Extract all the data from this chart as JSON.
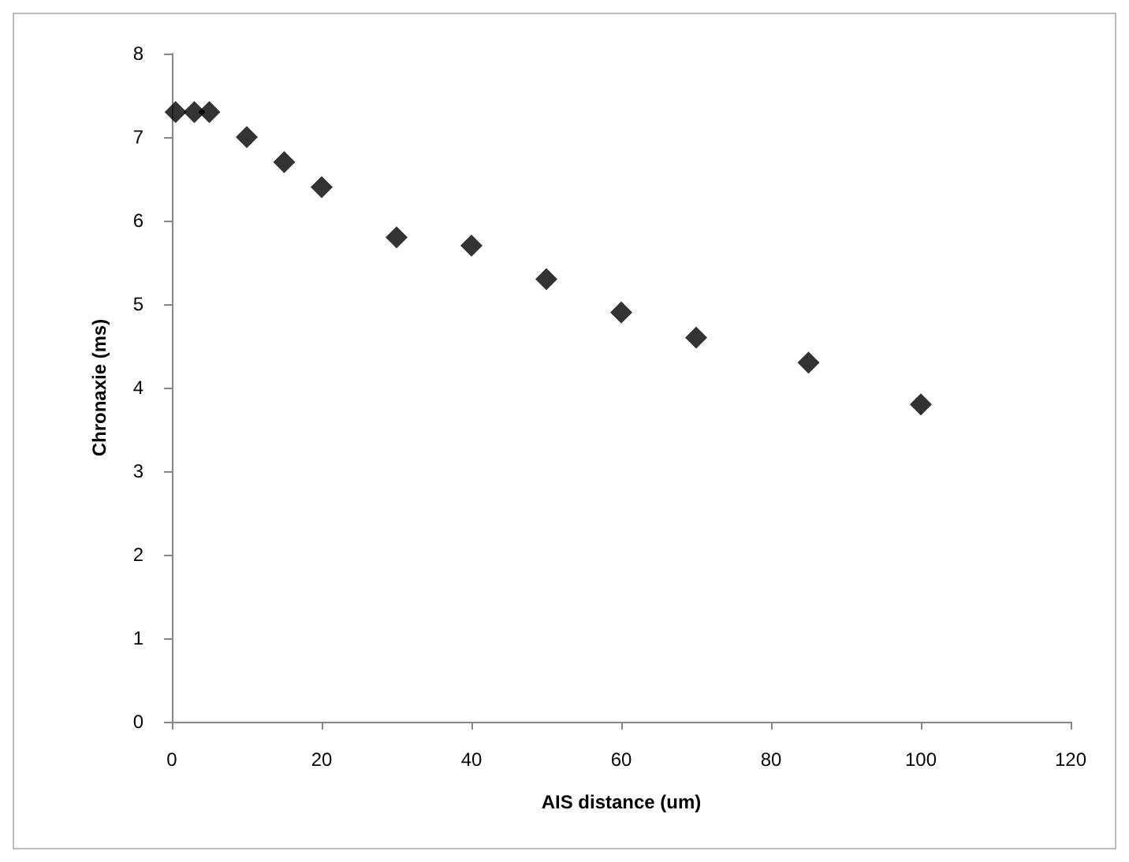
{
  "chart_data": {
    "type": "scatter",
    "xlabel": "AIS distance (um)",
    "ylabel": "Chronaxie (ms)",
    "x": [
      0.5,
      3,
      5,
      10,
      15,
      20,
      30,
      40,
      50,
      60,
      70,
      85,
      100
    ],
    "values": [
      7.3,
      7.3,
      7.3,
      7.0,
      6.7,
      6.4,
      5.8,
      5.7,
      5.3,
      4.9,
      4.6,
      4.3,
      3.8
    ],
    "color": "#000000",
    "marker": "diamond",
    "xlim": [
      0,
      120
    ],
    "xticks": [
      0,
      20,
      40,
      60,
      80,
      100,
      120
    ],
    "ylim": [
      0,
      8
    ],
    "yticks": [
      0,
      1,
      2,
      3,
      4,
      5,
      6,
      7,
      8
    ],
    "grid": false
  }
}
